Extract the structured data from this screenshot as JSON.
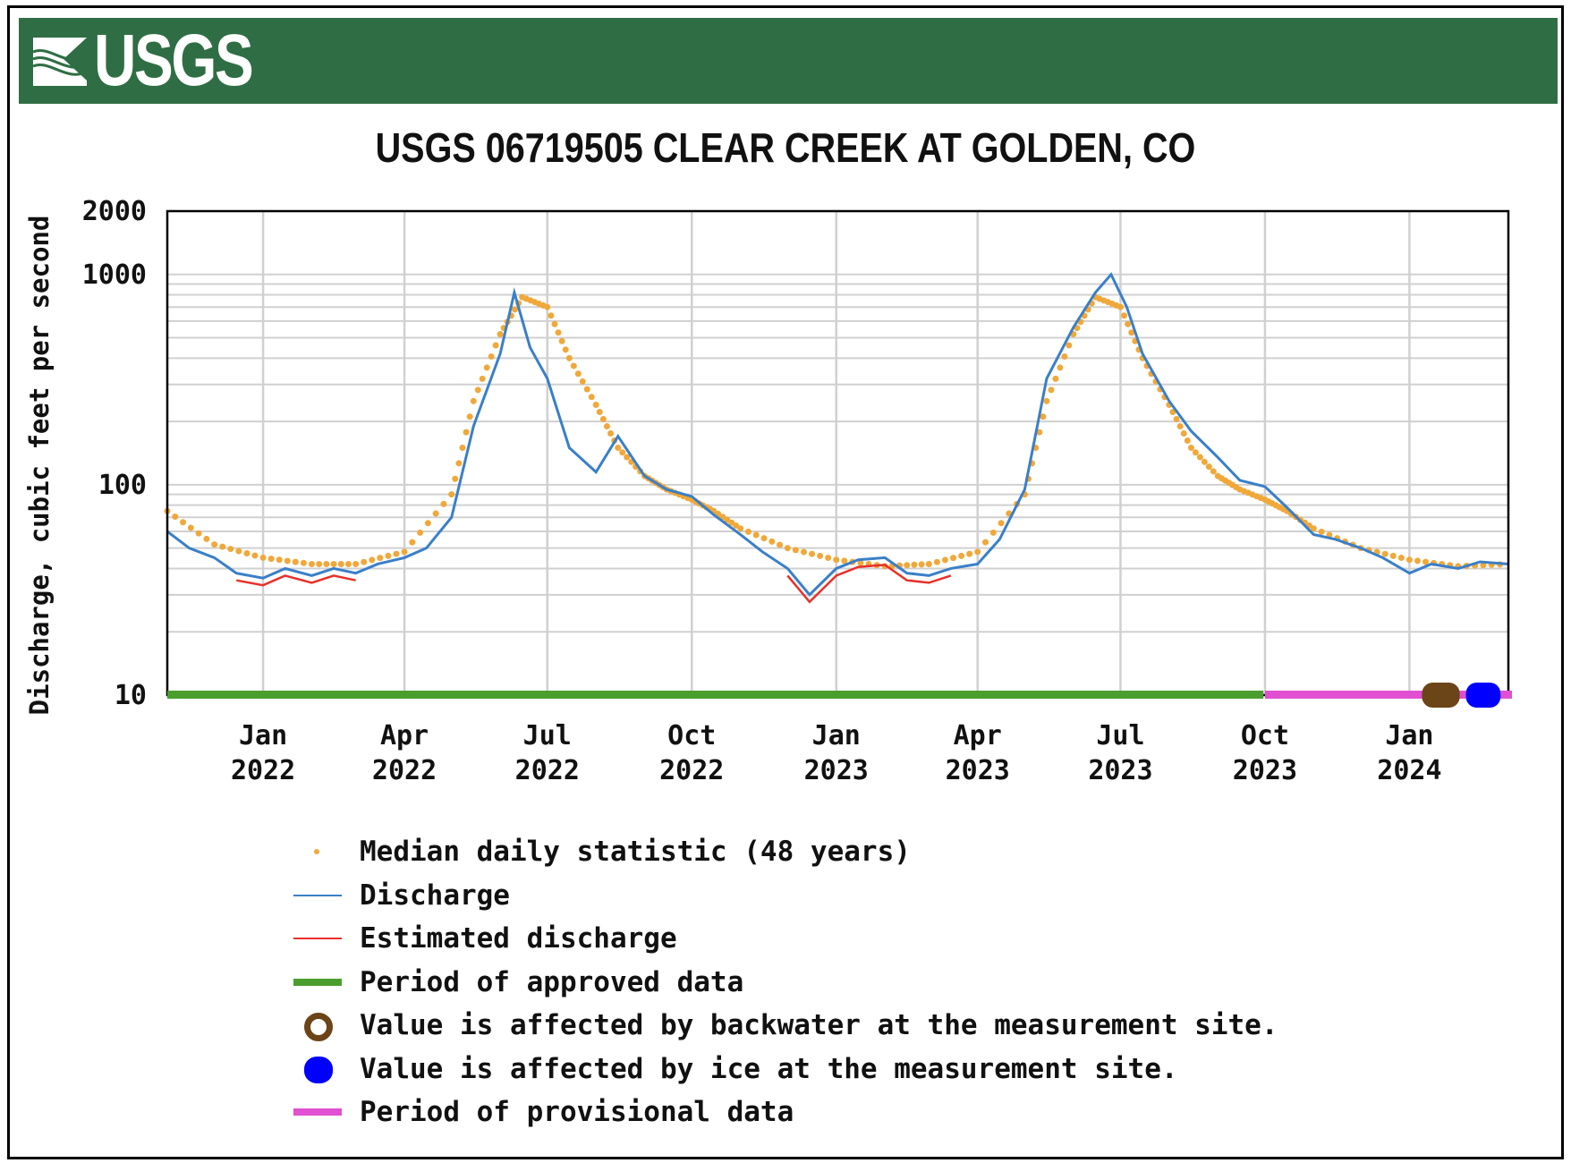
{
  "header": {
    "logo_text": "USGS"
  },
  "chart_data": {
    "type": "line",
    "title": "USGS 06719505 CLEAR CREEK AT GOLDEN, CO",
    "ylabel": "Discharge, cubic feet per second",
    "xlabel": "",
    "yscale": "log",
    "ylim": [
      10,
      2000
    ],
    "xlim": [
      "2021-11-01",
      "2024-03-04"
    ],
    "grid": true,
    "yticks": [
      "2000",
      "1000",
      "100",
      "10"
    ],
    "ytick_values": [
      2000,
      1000,
      100,
      10
    ],
    "xticks": [
      {
        "date": "2022-01-01",
        "month": "Jan",
        "year": "2022"
      },
      {
        "date": "2022-04-01",
        "month": "Apr",
        "year": "2022"
      },
      {
        "date": "2022-07-01",
        "month": "Jul",
        "year": "2022"
      },
      {
        "date": "2022-10-01",
        "month": "Oct",
        "year": "2022"
      },
      {
        "date": "2023-01-01",
        "month": "Jan",
        "year": "2023"
      },
      {
        "date": "2023-04-01",
        "month": "Apr",
        "year": "2023"
      },
      {
        "date": "2023-07-01",
        "month": "Jul",
        "year": "2023"
      },
      {
        "date": "2023-10-01",
        "month": "Oct",
        "year": "2023"
      },
      {
        "date": "2024-01-01",
        "month": "Jan",
        "year": "2024"
      }
    ],
    "series": [
      {
        "name": "Discharge",
        "color": "#3a7fc8",
        "points": [
          [
            "2021-11-01",
            60
          ],
          [
            "2021-11-15",
            50
          ],
          [
            "2021-12-01",
            45
          ],
          [
            "2021-12-15",
            38
          ],
          [
            "2022-01-01",
            36
          ],
          [
            "2022-01-15",
            40
          ],
          [
            "2022-02-01",
            37
          ],
          [
            "2022-02-15",
            40
          ],
          [
            "2022-03-01",
            38
          ],
          [
            "2022-03-15",
            42
          ],
          [
            "2022-04-01",
            45
          ],
          [
            "2022-04-15",
            50
          ],
          [
            "2022-05-01",
            70
          ],
          [
            "2022-05-15",
            190
          ],
          [
            "2022-06-01",
            420
          ],
          [
            "2022-06-10",
            820
          ],
          [
            "2022-06-20",
            450
          ],
          [
            "2022-07-01",
            320
          ],
          [
            "2022-07-15",
            150
          ],
          [
            "2022-08-01",
            115
          ],
          [
            "2022-08-15",
            170
          ],
          [
            "2022-09-01",
            110
          ],
          [
            "2022-09-15",
            95
          ],
          [
            "2022-10-01",
            88
          ],
          [
            "2022-10-15",
            72
          ],
          [
            "2022-11-01",
            58
          ],
          [
            "2022-11-15",
            48
          ],
          [
            "2022-12-01",
            40
          ],
          [
            "2022-12-15",
            30
          ],
          [
            "2023-01-01",
            40
          ],
          [
            "2023-01-15",
            44
          ],
          [
            "2023-02-01",
            45
          ],
          [
            "2023-02-15",
            38
          ],
          [
            "2023-03-01",
            37
          ],
          [
            "2023-03-15",
            40
          ],
          [
            "2023-04-01",
            42
          ],
          [
            "2023-04-15",
            55
          ],
          [
            "2023-05-01",
            95
          ],
          [
            "2023-05-15",
            320
          ],
          [
            "2023-06-01",
            560
          ],
          [
            "2023-06-15",
            820
          ],
          [
            "2023-06-25",
            1000
          ],
          [
            "2023-07-05",
            700
          ],
          [
            "2023-07-15",
            420
          ],
          [
            "2023-08-01",
            250
          ],
          [
            "2023-08-15",
            180
          ],
          [
            "2023-09-01",
            135
          ],
          [
            "2023-09-15",
            105
          ],
          [
            "2023-10-01",
            98
          ],
          [
            "2023-10-15",
            78
          ],
          [
            "2023-11-01",
            58
          ],
          [
            "2023-11-15",
            55
          ],
          [
            "2023-12-01",
            50
          ],
          [
            "2023-12-15",
            45
          ],
          [
            "2024-01-01",
            38
          ],
          [
            "2024-01-15",
            42
          ],
          [
            "2024-02-01",
            40
          ],
          [
            "2024-02-15",
            43
          ],
          [
            "2024-03-04",
            42
          ]
        ]
      },
      {
        "name": "Median daily statistic (48 years)",
        "color": "#f0a83a",
        "points": [
          [
            "2021-11-01",
            75
          ],
          [
            "2021-12-01",
            52
          ],
          [
            "2022-01-01",
            45
          ],
          [
            "2022-02-01",
            42
          ],
          [
            "2022-03-01",
            42
          ],
          [
            "2022-04-01",
            48
          ],
          [
            "2022-05-01",
            90
          ],
          [
            "2022-05-15",
            250
          ],
          [
            "2022-06-01",
            520
          ],
          [
            "2022-06-15",
            780
          ],
          [
            "2022-07-01",
            700
          ],
          [
            "2022-07-15",
            400
          ],
          [
            "2022-08-01",
            240
          ],
          [
            "2022-08-15",
            150
          ],
          [
            "2022-09-01",
            110
          ],
          [
            "2022-09-15",
            95
          ],
          [
            "2022-10-01",
            85
          ],
          [
            "2022-10-15",
            75
          ],
          [
            "2022-11-01",
            62
          ],
          [
            "2022-12-01",
            50
          ],
          [
            "2023-01-01",
            44
          ],
          [
            "2023-02-01",
            41
          ],
          [
            "2023-03-01",
            42
          ],
          [
            "2023-04-01",
            48
          ],
          [
            "2023-05-01",
            90
          ],
          [
            "2023-05-15",
            250
          ],
          [
            "2023-06-01",
            520
          ],
          [
            "2023-06-15",
            780
          ],
          [
            "2023-07-01",
            700
          ],
          [
            "2023-07-15",
            400
          ],
          [
            "2023-08-01",
            240
          ],
          [
            "2023-08-15",
            150
          ],
          [
            "2023-09-01",
            110
          ],
          [
            "2023-09-15",
            95
          ],
          [
            "2023-10-01",
            85
          ],
          [
            "2023-10-15",
            75
          ],
          [
            "2023-11-01",
            62
          ],
          [
            "2023-12-01",
            50
          ],
          [
            "2024-01-01",
            44
          ],
          [
            "2024-02-01",
            41
          ],
          [
            "2024-03-04",
            42
          ]
        ]
      }
    ],
    "estimated_periods": [
      [
        "2021-12-15",
        "2022-03-10"
      ],
      [
        "2022-11-20",
        "2023-03-20"
      ]
    ],
    "approved_period": [
      "2021-11-01",
      "2023-09-30"
    ],
    "provisional_period": [
      "2023-10-01",
      "2024-03-04"
    ],
    "backwater_period": [
      "2024-01-09",
      "2024-02-02"
    ],
    "ice_period": [
      "2024-02-06",
      "2024-02-28"
    ],
    "colors": {
      "discharge": "#3a7fc8",
      "estimated": "#e8302a",
      "median": "#f0a83a",
      "approved": "#4a9e2e",
      "provisional": "#e050d0",
      "backwater": "#6b4418",
      "ice": "#0000ff",
      "banner": "#2f6e44"
    },
    "legend": [
      {
        "label": "Median daily statistic (48 years)",
        "symbol": "dot"
      },
      {
        "label": "Discharge",
        "symbol": "line"
      },
      {
        "label": "Estimated discharge",
        "symbol": "line"
      },
      {
        "label": "Period of approved data",
        "symbol": "bar"
      },
      {
        "label": "Value is affected by backwater at the measurement site.",
        "symbol": "ring"
      },
      {
        "label": "Value is affected by ice at the measurement site.",
        "symbol": "disc"
      },
      {
        "label": "Period of provisional data",
        "symbol": "bar"
      }
    ]
  }
}
